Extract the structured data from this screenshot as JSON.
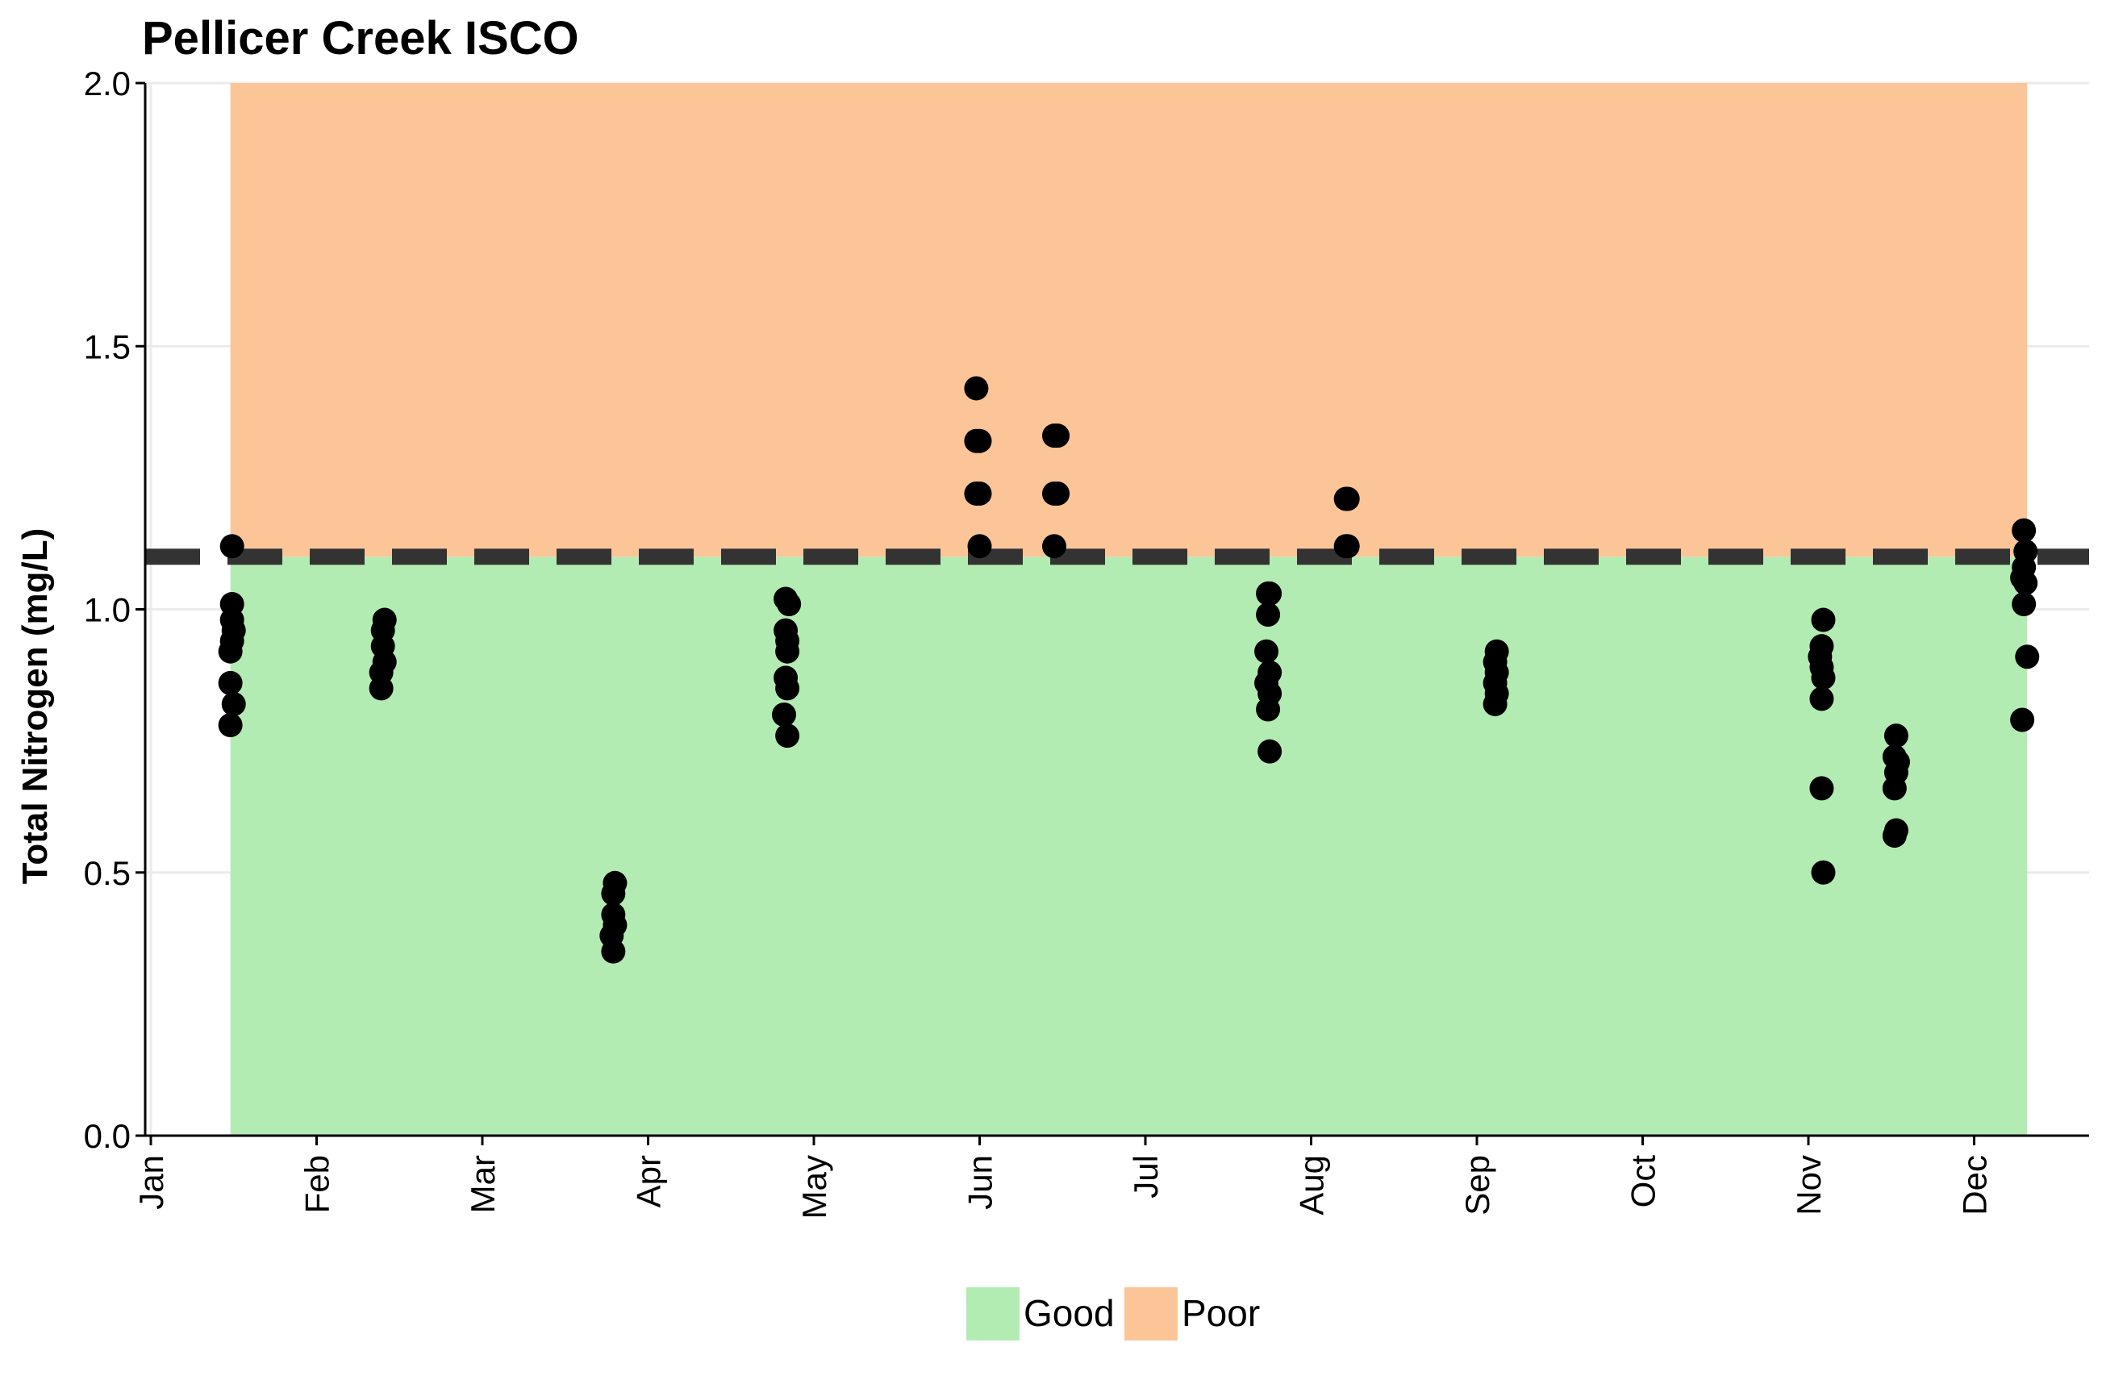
{
  "chart_data": {
    "type": "scatter",
    "title": "Pellicer Creek ISCO",
    "xlabel": "",
    "ylabel": "Total Nitrogen (mg/L)",
    "ylim": [
      0,
      2.0
    ],
    "yticks": [
      "0.0",
      "0.5",
      "1.0",
      "1.5",
      "2.0"
    ],
    "xticks": [
      "Jan",
      "Feb",
      "Mar",
      "Apr",
      "May",
      "Jun",
      "Jul",
      "Aug",
      "Sep",
      "Oct",
      "Nov",
      "Dec"
    ],
    "x_axis_unit": "month",
    "grid": true,
    "threshold": 1.1,
    "threshold_style": "dashed",
    "bands": [
      {
        "name": "Good",
        "from": 0,
        "to": 1.1,
        "color": "#b3ecb3"
      },
      {
        "name": "Poor",
        "from": 1.1,
        "to": 2.0,
        "color": "#fcc597"
      }
    ],
    "band_x_range": [
      0.48,
      11.32
    ],
    "legend": {
      "placement": "bottom",
      "items": [
        {
          "label": "Good",
          "color": "#b3ecb3"
        },
        {
          "label": "Poor",
          "color": "#fcc597"
        }
      ]
    },
    "point_color": "#000000",
    "series": [
      {
        "values": [
          [
            0.49,
            1.12
          ],
          [
            0.49,
            1.01
          ],
          [
            0.49,
            0.98
          ],
          [
            0.5,
            0.96
          ],
          [
            0.49,
            0.94
          ],
          [
            0.48,
            0.92
          ],
          [
            0.48,
            0.86
          ],
          [
            0.5,
            0.82
          ],
          [
            0.48,
            0.78
          ],
          [
            1.41,
            0.98
          ],
          [
            1.4,
            0.96
          ],
          [
            1.4,
            0.93
          ],
          [
            1.41,
            0.9
          ],
          [
            1.39,
            0.88
          ],
          [
            1.39,
            0.85
          ],
          [
            2.8,
            0.48
          ],
          [
            2.79,
            0.46
          ],
          [
            2.79,
            0.42
          ],
          [
            2.8,
            0.4
          ],
          [
            2.78,
            0.38
          ],
          [
            2.79,
            0.35
          ],
          [
            3.83,
            1.02
          ],
          [
            3.85,
            1.01
          ],
          [
            3.83,
            0.96
          ],
          [
            3.84,
            0.94
          ],
          [
            3.84,
            0.92
          ],
          [
            3.83,
            0.87
          ],
          [
            3.84,
            0.85
          ],
          [
            3.82,
            0.8
          ],
          [
            3.84,
            0.76
          ],
          [
            4.98,
            1.42
          ],
          [
            4.98,
            1.32
          ],
          [
            5.0,
            1.32
          ],
          [
            4.98,
            1.22
          ],
          [
            5.0,
            1.22
          ],
          [
            5.0,
            1.12
          ],
          [
            5.45,
            1.33
          ],
          [
            5.47,
            1.33
          ],
          [
            5.45,
            1.22
          ],
          [
            5.47,
            1.22
          ],
          [
            5.45,
            1.12
          ],
          [
            6.75,
            1.03
          ],
          [
            6.74,
            1.03
          ],
          [
            6.74,
            0.99
          ],
          [
            6.73,
            0.92
          ],
          [
            6.75,
            0.88
          ],
          [
            6.73,
            0.86
          ],
          [
            6.75,
            0.84
          ],
          [
            6.74,
            0.81
          ],
          [
            6.75,
            0.73
          ],
          [
            7.21,
            1.21
          ],
          [
            7.22,
            1.21
          ],
          [
            7.21,
            1.12
          ],
          [
            7.22,
            1.12
          ],
          [
            8.12,
            0.92
          ],
          [
            8.11,
            0.9
          ],
          [
            8.12,
            0.88
          ],
          [
            8.11,
            0.86
          ],
          [
            8.12,
            0.84
          ],
          [
            8.11,
            0.82
          ],
          [
            10.09,
            0.98
          ],
          [
            10.08,
            0.93
          ],
          [
            10.07,
            0.91
          ],
          [
            10.08,
            0.89
          ],
          [
            10.09,
            0.87
          ],
          [
            10.08,
            0.83
          ],
          [
            10.08,
            0.66
          ],
          [
            10.09,
            0.5
          ],
          [
            10.53,
            0.76
          ],
          [
            10.52,
            0.72
          ],
          [
            10.54,
            0.71
          ],
          [
            10.53,
            0.69
          ],
          [
            10.52,
            0.66
          ],
          [
            10.53,
            0.58
          ],
          [
            10.52,
            0.57
          ],
          [
            11.3,
            1.15
          ],
          [
            11.31,
            1.11
          ],
          [
            11.3,
            1.08
          ],
          [
            11.29,
            1.06
          ],
          [
            11.31,
            1.05
          ],
          [
            11.3,
            1.01
          ],
          [
            11.32,
            0.91
          ],
          [
            11.29,
            0.79
          ]
        ]
      }
    ]
  }
}
